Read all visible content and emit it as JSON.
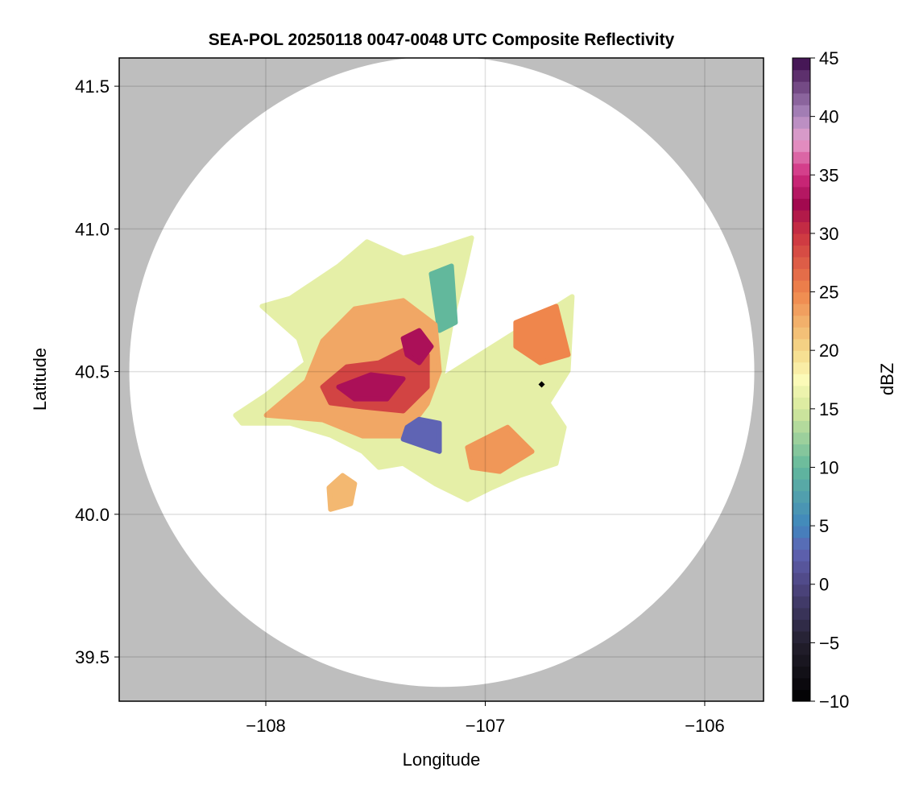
{
  "chart_data": {
    "type": "heatmap",
    "title": "SEA-POL 20250118 0047-0048 UTC Composite Reflectivity",
    "xlabel": "Longitude",
    "ylabel": "Latitude",
    "xlim": [
      -108.668,
      -105.732
    ],
    "ylim": [
      39.345,
      41.599
    ],
    "xticks": [
      -108,
      -107,
      -106
    ],
    "xtick_labels": [
      "−108",
      "−107",
      "−106"
    ],
    "yticks": [
      39.5,
      40.0,
      40.5,
      41.0,
      41.5
    ],
    "ytick_labels": [
      "39.5",
      "40.0",
      "40.5",
      "41.0",
      "41.5"
    ],
    "grid": true,
    "radar_range": {
      "center_lon": -107.198,
      "center_lat": 40.5,
      "radius_lon": 1.424,
      "radius_lat": 1.105
    },
    "colorbar": {
      "label": "dBZ",
      "range": [
        -10,
        45
      ],
      "ticks": [
        -10,
        -5,
        0,
        5,
        10,
        15,
        20,
        25,
        30,
        35,
        40,
        45
      ],
      "tick_labels": [
        "−10",
        "−5",
        "0",
        "5",
        "10",
        "15",
        "20",
        "25",
        "30",
        "35",
        "40",
        "45"
      ],
      "stops": [
        [
          -10,
          "#000000"
        ],
        [
          -5,
          "#231f2e"
        ],
        [
          0,
          "#4e4681"
        ],
        [
          3,
          "#5f64b4"
        ],
        [
          5,
          "#3f86bd"
        ],
        [
          10,
          "#62b89c"
        ],
        [
          15,
          "#d6e89c"
        ],
        [
          17.5,
          "#fbfab8"
        ],
        [
          20,
          "#f5d98a"
        ],
        [
          25,
          "#ef864c"
        ],
        [
          30,
          "#cb3341"
        ],
        [
          32.5,
          "#a2094f"
        ],
        [
          35,
          "#d02c7e"
        ],
        [
          38,
          "#e59fcc"
        ],
        [
          40,
          "#ae8ac0"
        ],
        [
          45,
          "#3a0a4a"
        ]
      ]
    },
    "echo_regions": [
      {
        "name": "echo-envelope",
        "dbz": 16,
        "poly": [
          [
            -108.138,
            40.347
          ],
          [
            -107.998,
            40.418
          ],
          [
            -107.815,
            40.531
          ],
          [
            -107.851,
            40.616
          ],
          [
            -108.017,
            40.729
          ],
          [
            -107.888,
            40.757
          ],
          [
            -107.668,
            40.87
          ],
          [
            -107.539,
            40.955
          ],
          [
            -107.374,
            40.898
          ],
          [
            -107.228,
            40.927
          ],
          [
            -107.062,
            40.969
          ],
          [
            -107.099,
            40.842
          ],
          [
            -107.154,
            40.672
          ],
          [
            -107.198,
            40.475
          ],
          [
            -106.604,
            40.763
          ],
          [
            -106.622,
            40.503
          ],
          [
            -106.714,
            40.39
          ],
          [
            -106.64,
            40.305
          ],
          [
            -106.677,
            40.178
          ],
          [
            -106.842,
            40.136
          ],
          [
            -106.971,
            40.093
          ],
          [
            -107.081,
            40.051
          ],
          [
            -107.228,
            40.107
          ],
          [
            -107.374,
            40.178
          ],
          [
            -107.484,
            40.164
          ],
          [
            -107.558,
            40.22
          ],
          [
            -107.705,
            40.277
          ],
          [
            -107.888,
            40.319
          ],
          [
            -108.108,
            40.319
          ]
        ]
      },
      {
        "name": "echo-green-north",
        "dbz": 10,
        "poly": [
          [
            -107.246,
            40.842
          ],
          [
            -107.154,
            40.87
          ],
          [
            -107.136,
            40.672
          ],
          [
            -107.209,
            40.644
          ]
        ]
      },
      {
        "name": "echo-moderate",
        "dbz": 23,
        "poly": [
          [
            -107.998,
            40.347
          ],
          [
            -107.815,
            40.466
          ],
          [
            -107.741,
            40.607
          ],
          [
            -107.595,
            40.72
          ],
          [
            -107.374,
            40.749
          ],
          [
            -107.228,
            40.664
          ],
          [
            -107.209,
            40.5
          ],
          [
            -107.264,
            40.387
          ],
          [
            -107.374,
            40.274
          ],
          [
            -107.558,
            40.274
          ],
          [
            -107.741,
            40.331
          ]
        ]
      },
      {
        "name": "echo-east-wedge",
        "dbz": 25,
        "poly": [
          [
            -106.861,
            40.672
          ],
          [
            -106.677,
            40.729
          ],
          [
            -106.622,
            40.559
          ],
          [
            -106.75,
            40.531
          ],
          [
            -106.861,
            40.588
          ]
        ]
      },
      {
        "name": "echo-southeast",
        "dbz": 24,
        "poly": [
          [
            -107.081,
            40.234
          ],
          [
            -106.898,
            40.305
          ],
          [
            -106.787,
            40.22
          ],
          [
            -106.934,
            40.15
          ],
          [
            -107.062,
            40.164
          ]
        ]
      },
      {
        "name": "echo-southwest-cell",
        "dbz": 22,
        "poly": [
          [
            -107.712,
            40.093
          ],
          [
            -107.65,
            40.136
          ],
          [
            -107.595,
            40.107
          ],
          [
            -107.613,
            40.037
          ],
          [
            -107.705,
            40.017
          ]
        ]
      },
      {
        "name": "echo-strong",
        "dbz": 29,
        "poly": [
          [
            -107.741,
            40.446
          ],
          [
            -107.631,
            40.517
          ],
          [
            -107.484,
            40.531
          ],
          [
            -107.338,
            40.588
          ],
          [
            -107.264,
            40.559
          ],
          [
            -107.264,
            40.446
          ],
          [
            -107.374,
            40.362
          ],
          [
            -107.558,
            40.376
          ],
          [
            -107.705,
            40.39
          ]
        ]
      },
      {
        "name": "echo-core-west",
        "dbz": 33,
        "poly": [
          [
            -107.668,
            40.446
          ],
          [
            -107.521,
            40.489
          ],
          [
            -107.374,
            40.475
          ],
          [
            -107.448,
            40.404
          ],
          [
            -107.595,
            40.404
          ]
        ]
      },
      {
        "name": "echo-core-north",
        "dbz": 33,
        "poly": [
          [
            -107.374,
            40.616
          ],
          [
            -107.301,
            40.644
          ],
          [
            -107.246,
            40.588
          ],
          [
            -107.301,
            40.531
          ],
          [
            -107.356,
            40.559
          ]
        ]
      },
      {
        "name": "echo-blue",
        "dbz": 3,
        "poly": [
          [
            -107.356,
            40.305
          ],
          [
            -107.301,
            40.333
          ],
          [
            -107.209,
            40.319
          ],
          [
            -107.209,
            40.22
          ],
          [
            -107.264,
            40.234
          ],
          [
            -107.374,
            40.263
          ]
        ]
      }
    ],
    "marker": {
      "lon": -106.743,
      "lat": 40.455,
      "color": "#000000"
    }
  }
}
